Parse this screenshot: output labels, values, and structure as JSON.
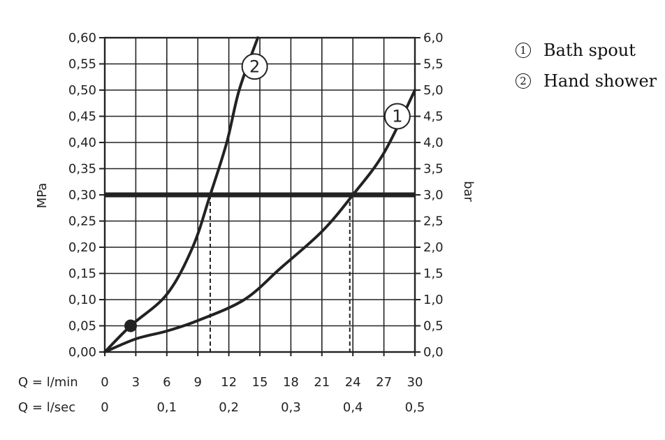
{
  "chart_data": {
    "type": "line",
    "y_left_label": "MPa",
    "y_right_label": "bar",
    "x_rows": [
      {
        "label": "Q = l/min",
        "ticks": [
          "0",
          "3",
          "6",
          "9",
          "12",
          "15",
          "18",
          "21",
          "24",
          "27",
          "30"
        ],
        "values": [
          0,
          3,
          6,
          9,
          12,
          15,
          18,
          21,
          24,
          27,
          30
        ]
      },
      {
        "label": "Q = l/sec",
        "ticks": [
          "0",
          "0,1",
          "0,2",
          "0,3",
          "0,4",
          "0,5"
        ],
        "values": [
          0,
          0.1,
          0.2,
          0.3,
          0.4,
          0.5
        ]
      }
    ],
    "y_left_ticks": [
      "0,00",
      "0,05",
      "0,10",
      "0,15",
      "0,20",
      "0,25",
      "0,30",
      "0,35",
      "0,40",
      "0,45",
      "0,50",
      "0,55",
      "0,60"
    ],
    "y_right_ticks": [
      "0,0",
      "0,5",
      "1,0",
      "1,5",
      "2,0",
      "2,5",
      "3,0",
      "3,5",
      "4,0",
      "4,5",
      "5,0",
      "5,5",
      "6,0"
    ],
    "xlim": [
      0,
      30
    ],
    "ylim": [
      0,
      0.6
    ],
    "grid": true,
    "reference_line": {
      "y": 0.3
    },
    "series": [
      {
        "name": "Bath spout",
        "marker": "1",
        "x": [
          0,
          3,
          6,
          9,
          13.5,
          17,
          21,
          24,
          27,
          30
        ],
        "y": [
          0,
          0.025,
          0.04,
          0.06,
          0.1,
          0.16,
          0.23,
          0.3,
          0.38,
          0.5
        ]
      },
      {
        "name": "Hand shower",
        "marker": "2",
        "x": [
          0,
          2.5,
          6,
          8.5,
          10.2,
          11.8,
          13,
          14.8
        ],
        "y": [
          0,
          0.05,
          0.11,
          0.2,
          0.3,
          0.4,
          0.5,
          0.6
        ]
      }
    ],
    "highlight_point": {
      "x": 2.5,
      "y": 0.05
    },
    "dashed_drop_lines": [
      {
        "x": 10.2,
        "y": 0.3
      },
      {
        "x": 23.7,
        "y": 0.3
      }
    ],
    "legend": [
      {
        "num": "1",
        "text": "Bath spout"
      },
      {
        "num": "2",
        "text": "Hand shower"
      }
    ]
  }
}
